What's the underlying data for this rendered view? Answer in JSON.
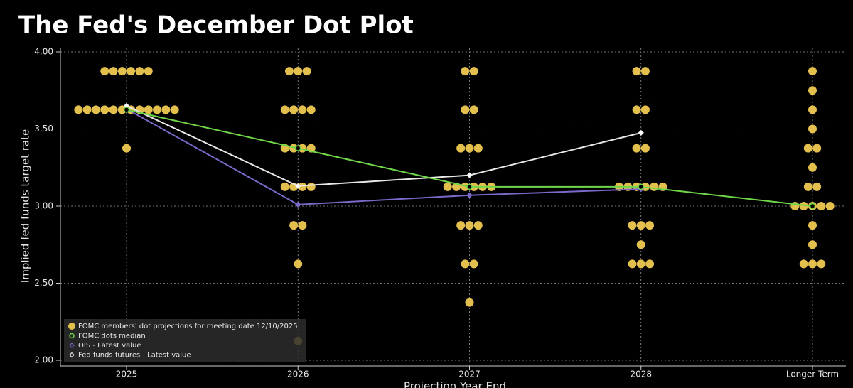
{
  "chart_data": {
    "type": "dot",
    "title": "The Fed's December Dot Plot",
    "x_label": "Projection Year End",
    "y_label": "Implied fed funds target rate",
    "categories": [
      "2025",
      "2026",
      "2027",
      "2028",
      "Longer Term"
    ],
    "ylim": [
      2.0,
      4.0
    ],
    "yticks": [
      {
        "value": 2.0,
        "label": "2.00"
      },
      {
        "value": 2.5,
        "label": "2.50"
      },
      {
        "value": 3.0,
        "label": "3.00"
      },
      {
        "value": 3.5,
        "label": "3.50"
      },
      {
        "value": 4.0,
        "label": "4.00"
      }
    ],
    "grid": true,
    "legend": "lower left",
    "dots": {
      "name": "FOMC members' dot projections for meeting date 12/10/2025",
      "color": "#e3c04d",
      "values": [
        [
          3.875,
          3.875,
          3.875,
          3.875,
          3.875,
          3.875,
          3.625,
          3.625,
          3.625,
          3.625,
          3.625,
          3.625,
          3.625,
          3.625,
          3.625,
          3.625,
          3.625,
          3.625,
          3.375
        ],
        [
          3.875,
          3.875,
          3.875,
          3.625,
          3.625,
          3.625,
          3.625,
          3.375,
          3.375,
          3.375,
          3.375,
          3.125,
          3.125,
          3.125,
          3.125,
          2.875,
          2.875,
          2.625,
          2.125
        ],
        [
          3.875,
          3.875,
          3.625,
          3.625,
          3.375,
          3.375,
          3.375,
          3.125,
          3.125,
          3.125,
          3.125,
          3.125,
          3.125,
          2.875,
          2.875,
          2.875,
          2.625,
          2.625,
          2.375
        ],
        [
          3.875,
          3.875,
          3.625,
          3.625,
          3.375,
          3.375,
          3.125,
          3.125,
          3.125,
          3.125,
          3.125,
          3.125,
          2.875,
          2.875,
          2.875,
          2.75,
          2.625,
          2.625,
          2.625
        ],
        [
          3.875,
          3.75,
          3.625,
          3.5,
          3.375,
          3.375,
          3.25,
          3.125,
          3.125,
          3.0,
          3.0,
          3.0,
          3.0,
          3.0,
          2.875,
          2.75,
          2.625,
          2.625,
          2.625
        ]
      ]
    },
    "series": [
      {
        "name": "FOMC dots median",
        "color": "#6fd64a",
        "marker": "circle",
        "values": [
          3.625,
          3.375,
          3.125,
          3.125,
          3.0
        ]
      },
      {
        "name": "OIS - Latest value",
        "color": "#7b68c8",
        "marker": "diamond",
        "values": [
          3.63,
          3.01,
          3.07,
          3.11,
          null
        ]
      },
      {
        "name": "Fed funds futures - Latest value",
        "color": "#e8e8e8",
        "marker": "diamond",
        "values": [
          3.65,
          3.13,
          3.2,
          3.475,
          null
        ]
      }
    ]
  }
}
